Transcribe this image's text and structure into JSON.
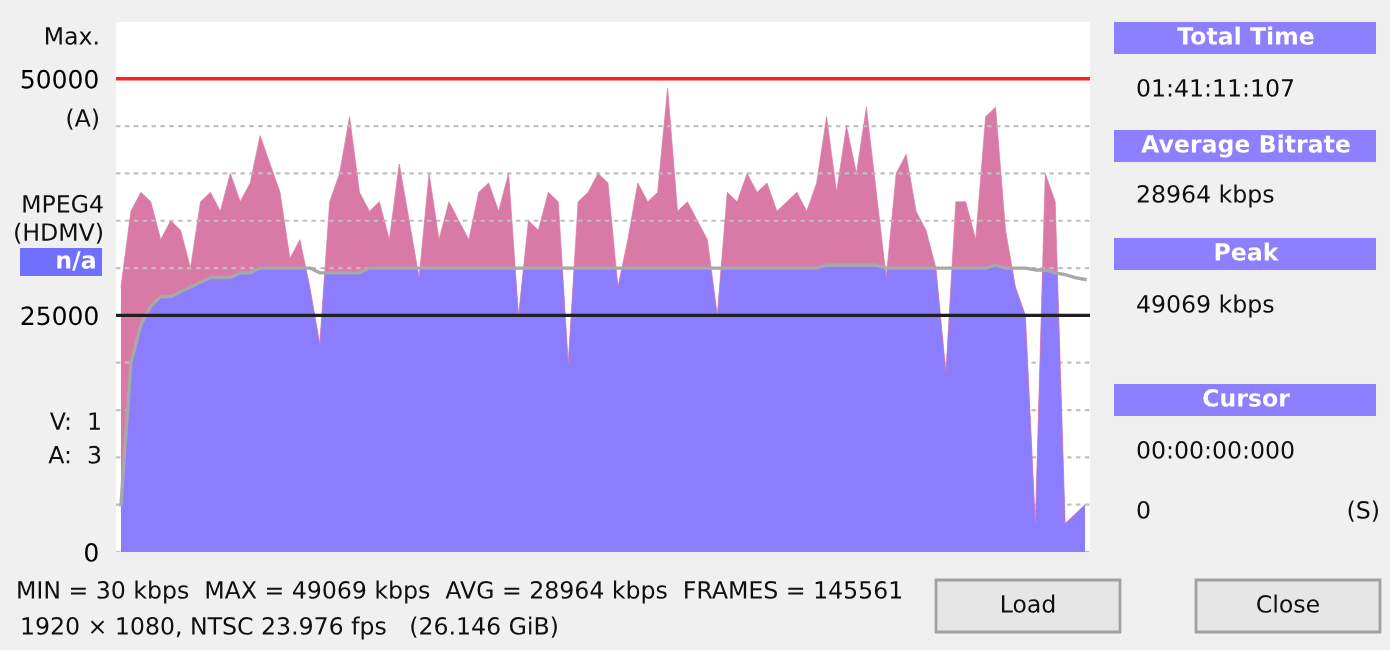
{
  "chart_data": {
    "type": "area",
    "categories": [
      null,
      null,
      null,
      null,
      null,
      null,
      null,
      null,
      null,
      null,
      null,
      null,
      null,
      null,
      null,
      null,
      null,
      null,
      null,
      null,
      null,
      null,
      null,
      null,
      null,
      null,
      null,
      null,
      null,
      null,
      null,
      null,
      null,
      null,
      null,
      null,
      null,
      null,
      null,
      null,
      null,
      null,
      null,
      null,
      null,
      null,
      null,
      null,
      null,
      null,
      null,
      null,
      null,
      null,
      null,
      null,
      null,
      null,
      null,
      null,
      null,
      null,
      null,
      null,
      null,
      null,
      null,
      null,
      null,
      null,
      null,
      null,
      null,
      null,
      null,
      null,
      null,
      null,
      null,
      null,
      null,
      null,
      null,
      null,
      null,
      null,
      null,
      null,
      null,
      null,
      null,
      null,
      null,
      null,
      null,
      null,
      null,
      null
    ],
    "series": [
      {
        "color": "#d97aa6",
        "values": [
          28000,
          36000,
          38000,
          37000,
          33000,
          35000,
          34000,
          30000,
          37000,
          38000,
          36000,
          40000,
          37000,
          39000,
          44000,
          41000,
          38000,
          31000,
          33000,
          28000,
          22000,
          37000,
          40000,
          46000,
          38000,
          36000,
          37000,
          33000,
          41000,
          35000,
          29000,
          40000,
          33000,
          37000,
          35000,
          33000,
          38000,
          39000,
          36000,
          40000,
          25000,
          35000,
          34000,
          38000,
          37000,
          20000,
          37000,
          38000,
          40000,
          39000,
          28000,
          33000,
          39000,
          37000,
          38000,
          49000,
          36000,
          37000,
          35000,
          33000,
          25000,
          38000,
          37000,
          40000,
          38000,
          39000,
          36000,
          37000,
          38000,
          36000,
          39000,
          46000,
          38000,
          45000,
          40000,
          47000,
          38000,
          29000,
          40000,
          42000,
          36000,
          34000,
          30000,
          19000,
          37000,
          37000,
          33000,
          46000,
          47000,
          34000,
          28000,
          25000,
          3000,
          40000,
          37000,
          3000,
          4000,
          5000
        ]
      },
      {
        "color": "#8c7dff",
        "values": [
          5000,
          20000,
          24000,
          26000,
          27000,
          27000,
          27500,
          28000,
          28500,
          29000,
          29000,
          29000,
          29500,
          29500,
          30000,
          30000,
          30000,
          30000,
          30000,
          30000,
          29500,
          29500,
          29500,
          29500,
          29500,
          30000,
          30000,
          30000,
          30000,
          30000,
          30000,
          30000,
          30000,
          30000,
          30000,
          30000,
          30000,
          30000,
          30000,
          30000,
          30000,
          30000,
          30000,
          30000,
          30000,
          30000,
          30000,
          30000,
          30000,
          30000,
          30000,
          30000,
          30000,
          30000,
          30000,
          30000,
          30000,
          30000,
          30000,
          30000,
          30000,
          30000,
          30000,
          30000,
          30000,
          30000,
          30000,
          30000,
          30000,
          30000,
          30000,
          30300,
          30300,
          30300,
          30300,
          30300,
          30300,
          30000,
          30000,
          30000,
          30000,
          30000,
          30000,
          30000,
          30000,
          30000,
          30000,
          30000,
          30300,
          30000,
          30000,
          30000,
          29800,
          29800,
          29500,
          29300,
          29000,
          28800
        ]
      }
    ],
    "ylim": [
      0,
      56000
    ],
    "yticks": [
      0,
      {
        "value": 5000,
        "label": null
      },
      {
        "value": 10000,
        "label": null
      },
      {
        "value": 15000,
        "label": null
      },
      {
        "value": 20000,
        "label": null
      },
      25000,
      {
        "value": 30000,
        "label": null
      },
      {
        "value": 35000,
        "label": null
      },
      {
        "value": 40000,
        "label": null
      },
      {
        "value": 45000,
        "label": null
      },
      50000
    ],
    "grid": "y",
    "tick_labels": "y",
    "legend": false,
    "ref_lines": [
      {
        "axis": "y",
        "value": 50000,
        "color": "#ff2020"
      },
      {
        "axis": "y",
        "value": 25000,
        "color": "#202020"
      }
    ],
    "annotations": [
      "Max.",
      "(A)",
      "MPEG4\n(HDMV)",
      "n/a",
      "V:  1\nA:  3",
      "Total Time",
      "01:41:11:107",
      "Average Bitrate",
      "28964 kbps",
      "Peak",
      "49069 kbps",
      "Cursor",
      "00:00:00:000",
      "0",
      "(S)",
      "MIN = 30 kbps  MAX = 49069 kbps  AVG = 28964 kbps  FRAMES = 145561",
      "1920 × 1080, NTSC 23.976 fps   (26.146 GiB)",
      "Load",
      "Close"
    ]
  }
}
